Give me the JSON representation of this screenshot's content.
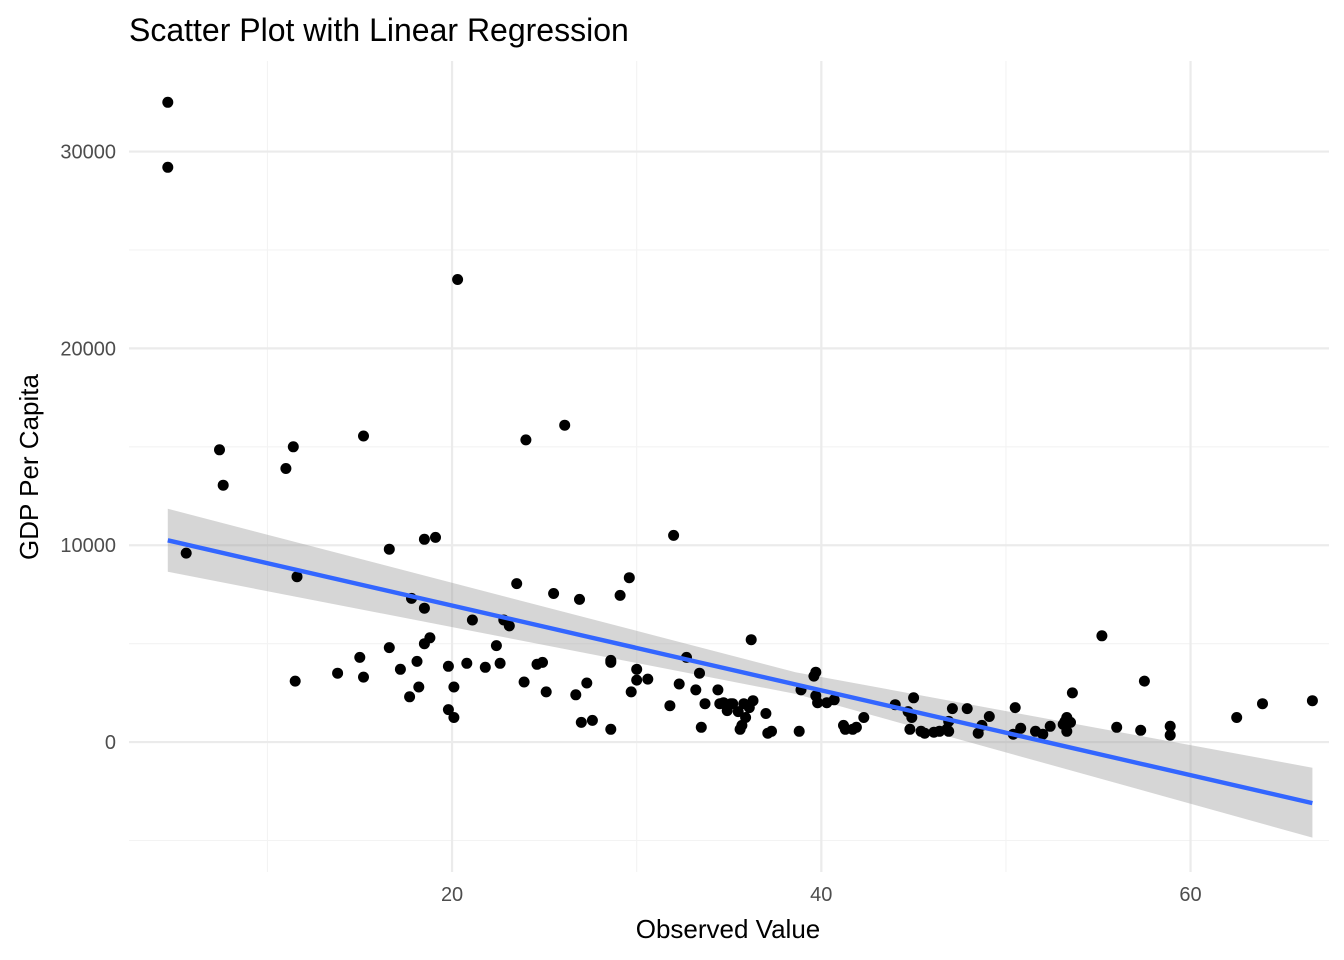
{
  "chart_data": {
    "type": "scatter",
    "title": "Scatter Plot with Linear Regression",
    "xlabel": "Observed Value",
    "ylabel": "GDP Per Capita",
    "xlim": [
      2.5,
      67.5
    ],
    "ylim": [
      -6600,
      34600
    ],
    "x_ticks": [
      20,
      40,
      60
    ],
    "x_tick_labels": [
      "20",
      "40",
      "60"
    ],
    "x_minor_ticks": [
      10,
      30,
      50
    ],
    "y_ticks": [
      0,
      10000,
      20000,
      30000
    ],
    "y_tick_labels": [
      "0",
      "10000",
      "20000",
      "30000"
    ],
    "y_minor_ticks": [
      -5000,
      5000,
      15000,
      25000
    ],
    "grid": true,
    "colors": {
      "points": "#000000",
      "line": "#3366ff",
      "band": "#999999",
      "grid": "#ebebeb"
    },
    "points": [
      [
        4.6,
        32500
      ],
      [
        4.6,
        29200
      ],
      [
        5.6,
        9600
      ],
      [
        7.4,
        14850
      ],
      [
        7.6,
        13050
      ],
      [
        11.0,
        13900
      ],
      [
        11.4,
        15000
      ],
      [
        11.6,
        8400
      ],
      [
        11.5,
        3100
      ],
      [
        13.8,
        3500
      ],
      [
        15.0,
        4300
      ],
      [
        15.2,
        3300
      ],
      [
        15.2,
        15550
      ],
      [
        16.6,
        9800
      ],
      [
        16.6,
        4800
      ],
      [
        17.2,
        3700
      ],
      [
        17.7,
        2300
      ],
      [
        17.8,
        7300
      ],
      [
        18.1,
        4100
      ],
      [
        18.2,
        2800
      ],
      [
        18.5,
        10300
      ],
      [
        18.5,
        6800
      ],
      [
        18.5,
        5000
      ],
      [
        18.8,
        5300
      ],
      [
        19.1,
        10400
      ],
      [
        19.8,
        1650
      ],
      [
        19.8,
        3850
      ],
      [
        20.1,
        2800
      ],
      [
        20.1,
        1250
      ],
      [
        20.3,
        23500
      ],
      [
        20.8,
        4000
      ],
      [
        21.1,
        6200
      ],
      [
        21.8,
        3800
      ],
      [
        22.4,
        4900
      ],
      [
        22.6,
        4000
      ],
      [
        22.8,
        6200
      ],
      [
        23.1,
        5900
      ],
      [
        23.5,
        8050
      ],
      [
        23.9,
        3050
      ],
      [
        24.0,
        15350
      ],
      [
        24.6,
        3950
      ],
      [
        24.9,
        4050
      ],
      [
        25.1,
        2550
      ],
      [
        25.5,
        7550
      ],
      [
        26.1,
        16100
      ],
      [
        26.7,
        2400
      ],
      [
        26.9,
        7250
      ],
      [
        27.0,
        1000
      ],
      [
        27.3,
        3000
      ],
      [
        27.6,
        1100
      ],
      [
        28.6,
        4050
      ],
      [
        28.6,
        4150
      ],
      [
        28.6,
        650
      ],
      [
        29.1,
        7450
      ],
      [
        29.6,
        8350
      ],
      [
        29.7,
        2550
      ],
      [
        30.0,
        3700
      ],
      [
        30.0,
        3150
      ],
      [
        30.6,
        3200
      ],
      [
        31.8,
        1850
      ],
      [
        32.0,
        10500
      ],
      [
        32.3,
        2950
      ],
      [
        32.7,
        4300
      ],
      [
        33.2,
        2650
      ],
      [
        33.4,
        3500
      ],
      [
        33.5,
        750
      ],
      [
        33.7,
        1950
      ],
      [
        34.4,
        2650
      ],
      [
        34.5,
        1950
      ],
      [
        34.7,
        2000
      ],
      [
        34.9,
        1600
      ],
      [
        35.1,
        1950
      ],
      [
        35.2,
        1950
      ],
      [
        35.5,
        1550
      ],
      [
        35.6,
        650
      ],
      [
        35.8,
        1950
      ],
      [
        35.9,
        1250
      ],
      [
        35.7,
        850
      ],
      [
        36.1,
        1750
      ],
      [
        36.2,
        5200
      ],
      [
        36.3,
        2100
      ],
      [
        37.0,
        1450
      ],
      [
        37.1,
        450
      ],
      [
        37.3,
        550
      ],
      [
        38.8,
        550
      ],
      [
        38.9,
        2650
      ],
      [
        39.6,
        3350
      ],
      [
        39.7,
        3550
      ],
      [
        39.7,
        2350
      ],
      [
        39.8,
        2000
      ],
      [
        40.3,
        2000
      ],
      [
        40.7,
        2150
      ],
      [
        41.2,
        850
      ],
      [
        41.3,
        650
      ],
      [
        41.7,
        650
      ],
      [
        41.9,
        750
      ],
      [
        42.3,
        1250
      ],
      [
        44.0,
        1900
      ],
      [
        44.7,
        1550
      ],
      [
        44.8,
        650
      ],
      [
        44.9,
        1250
      ],
      [
        45.0,
        2250
      ],
      [
        45.4,
        550
      ],
      [
        45.6,
        450
      ],
      [
        46.1,
        500
      ],
      [
        46.4,
        550
      ],
      [
        46.8,
        650
      ],
      [
        46.9,
        1050
      ],
      [
        46.9,
        550
      ],
      [
        47.1,
        1700
      ],
      [
        47.9,
        1700
      ],
      [
        48.5,
        450
      ],
      [
        48.7,
        850
      ],
      [
        49.1,
        1300
      ],
      [
        50.4,
        400
      ],
      [
        50.5,
        1750
      ],
      [
        50.8,
        700
      ],
      [
        51.6,
        550
      ],
      [
        52.0,
        400
      ],
      [
        52.4,
        800
      ],
      [
        53.1,
        900
      ],
      [
        53.2,
        1050
      ],
      [
        53.3,
        1250
      ],
      [
        53.3,
        550
      ],
      [
        53.5,
        1000
      ],
      [
        53.6,
        2500
      ],
      [
        55.2,
        5400
      ],
      [
        56.0,
        750
      ],
      [
        57.3,
        600
      ],
      [
        57.5,
        3100
      ],
      [
        58.9,
        800
      ],
      [
        58.9,
        350
      ],
      [
        62.5,
        1250
      ],
      [
        63.9,
        1950
      ],
      [
        66.6,
        2100
      ]
    ],
    "regression": {
      "x_start": 4.6,
      "y_start": 10250,
      "x_end": 66.6,
      "y_end": -3100
    },
    "confidence_band": {
      "x": [
        4.6,
        66.6
      ],
      "lower_start": 8650,
      "upper_start": 11850,
      "lower_end": -4850,
      "upper_end": -1300,
      "narrow_x": 38.6,
      "narrow_lower": 2450,
      "narrow_upper": 3550
    }
  }
}
